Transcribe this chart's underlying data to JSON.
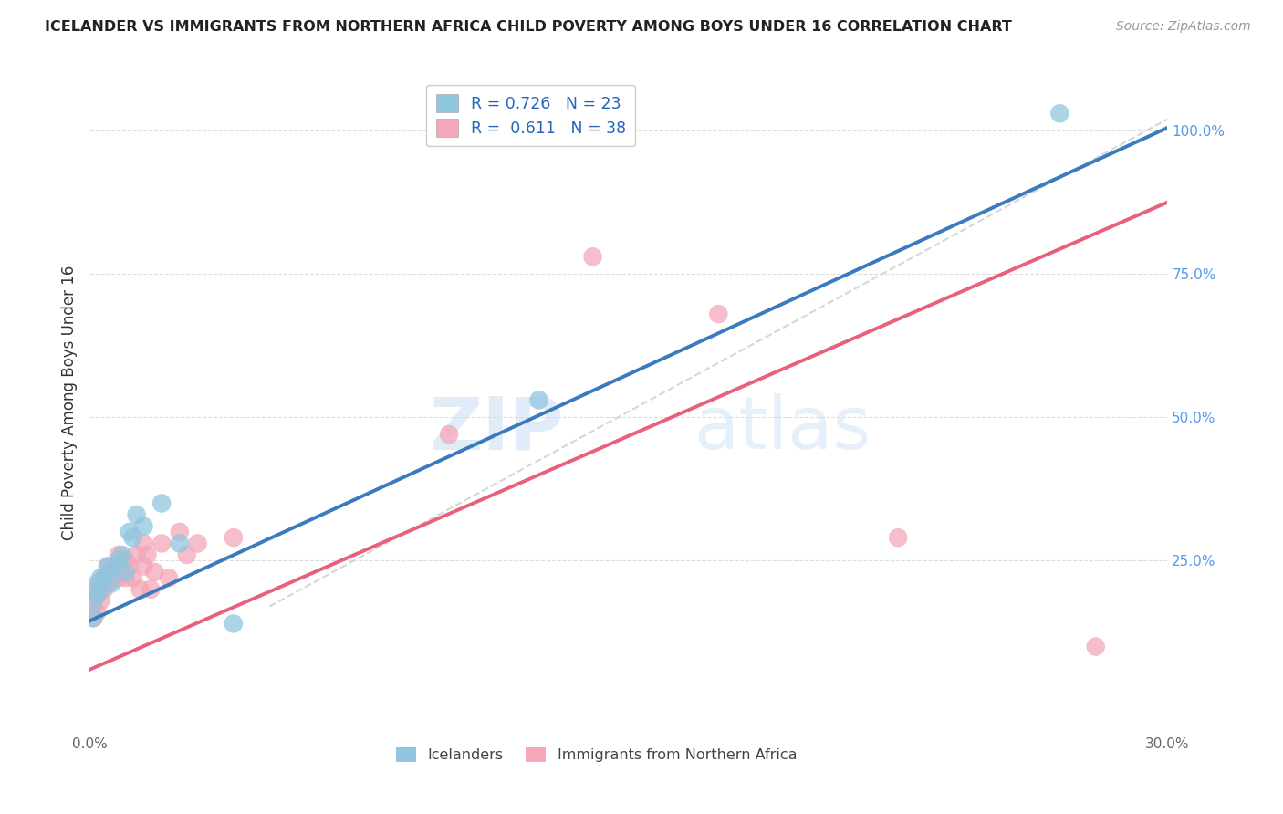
{
  "title": "ICELANDER VS IMMIGRANTS FROM NORTHERN AFRICA CHILD POVERTY AMONG BOYS UNDER 16 CORRELATION CHART",
  "source": "Source: ZipAtlas.com",
  "ylabel": "Child Poverty Among Boys Under 16",
  "xlim": [
    0.0,
    0.3
  ],
  "ylim": [
    -0.05,
    1.1
  ],
  "xticks": [
    0.0,
    0.05,
    0.1,
    0.15,
    0.2,
    0.25,
    0.3
  ],
  "xticklabels": [
    "0.0%",
    "",
    "",
    "",
    "",
    "",
    "30.0%"
  ],
  "yticks_right": [
    0.25,
    0.5,
    0.75,
    1.0
  ],
  "ytick_right_labels": [
    "25.0%",
    "50.0%",
    "75.0%",
    "100.0%"
  ],
  "legend_r1": "R = 0.726",
  "legend_n1": "N = 23",
  "legend_r2": "R =  0.611",
  "legend_n2": "N = 38",
  "color_blue": "#92c5de",
  "color_pink": "#f4a7b9",
  "color_line_blue": "#3a7bbf",
  "color_line_pink": "#e8607a",
  "color_dashed": "#cccccc",
  "watermark_zip": "ZIP",
  "watermark_atlas": "atlas",
  "blue_x": [
    0.001,
    0.001,
    0.002,
    0.002,
    0.003,
    0.003,
    0.004,
    0.005,
    0.005,
    0.006,
    0.007,
    0.008,
    0.009,
    0.01,
    0.011,
    0.012,
    0.013,
    0.015,
    0.02,
    0.025,
    0.04,
    0.125,
    0.27
  ],
  "blue_y": [
    0.18,
    0.15,
    0.19,
    0.21,
    0.2,
    0.22,
    0.22,
    0.23,
    0.24,
    0.21,
    0.24,
    0.25,
    0.26,
    0.23,
    0.3,
    0.29,
    0.33,
    0.31,
    0.35,
    0.28,
    0.14,
    0.53,
    1.03
  ],
  "pink_x": [
    0.001,
    0.001,
    0.001,
    0.002,
    0.002,
    0.003,
    0.003,
    0.004,
    0.004,
    0.005,
    0.005,
    0.006,
    0.007,
    0.008,
    0.008,
    0.009,
    0.01,
    0.01,
    0.011,
    0.012,
    0.013,
    0.014,
    0.015,
    0.015,
    0.016,
    0.017,
    0.018,
    0.02,
    0.022,
    0.025,
    0.027,
    0.03,
    0.04,
    0.1,
    0.14,
    0.175,
    0.225,
    0.28
  ],
  "pink_y": [
    0.17,
    0.2,
    0.15,
    0.19,
    0.16,
    0.21,
    0.18,
    0.22,
    0.2,
    0.24,
    0.21,
    0.22,
    0.23,
    0.26,
    0.22,
    0.23,
    0.25,
    0.22,
    0.24,
    0.22,
    0.26,
    0.2,
    0.28,
    0.24,
    0.26,
    0.2,
    0.23,
    0.28,
    0.22,
    0.3,
    0.26,
    0.28,
    0.29,
    0.47,
    0.78,
    0.68,
    0.29,
    0.1
  ]
}
